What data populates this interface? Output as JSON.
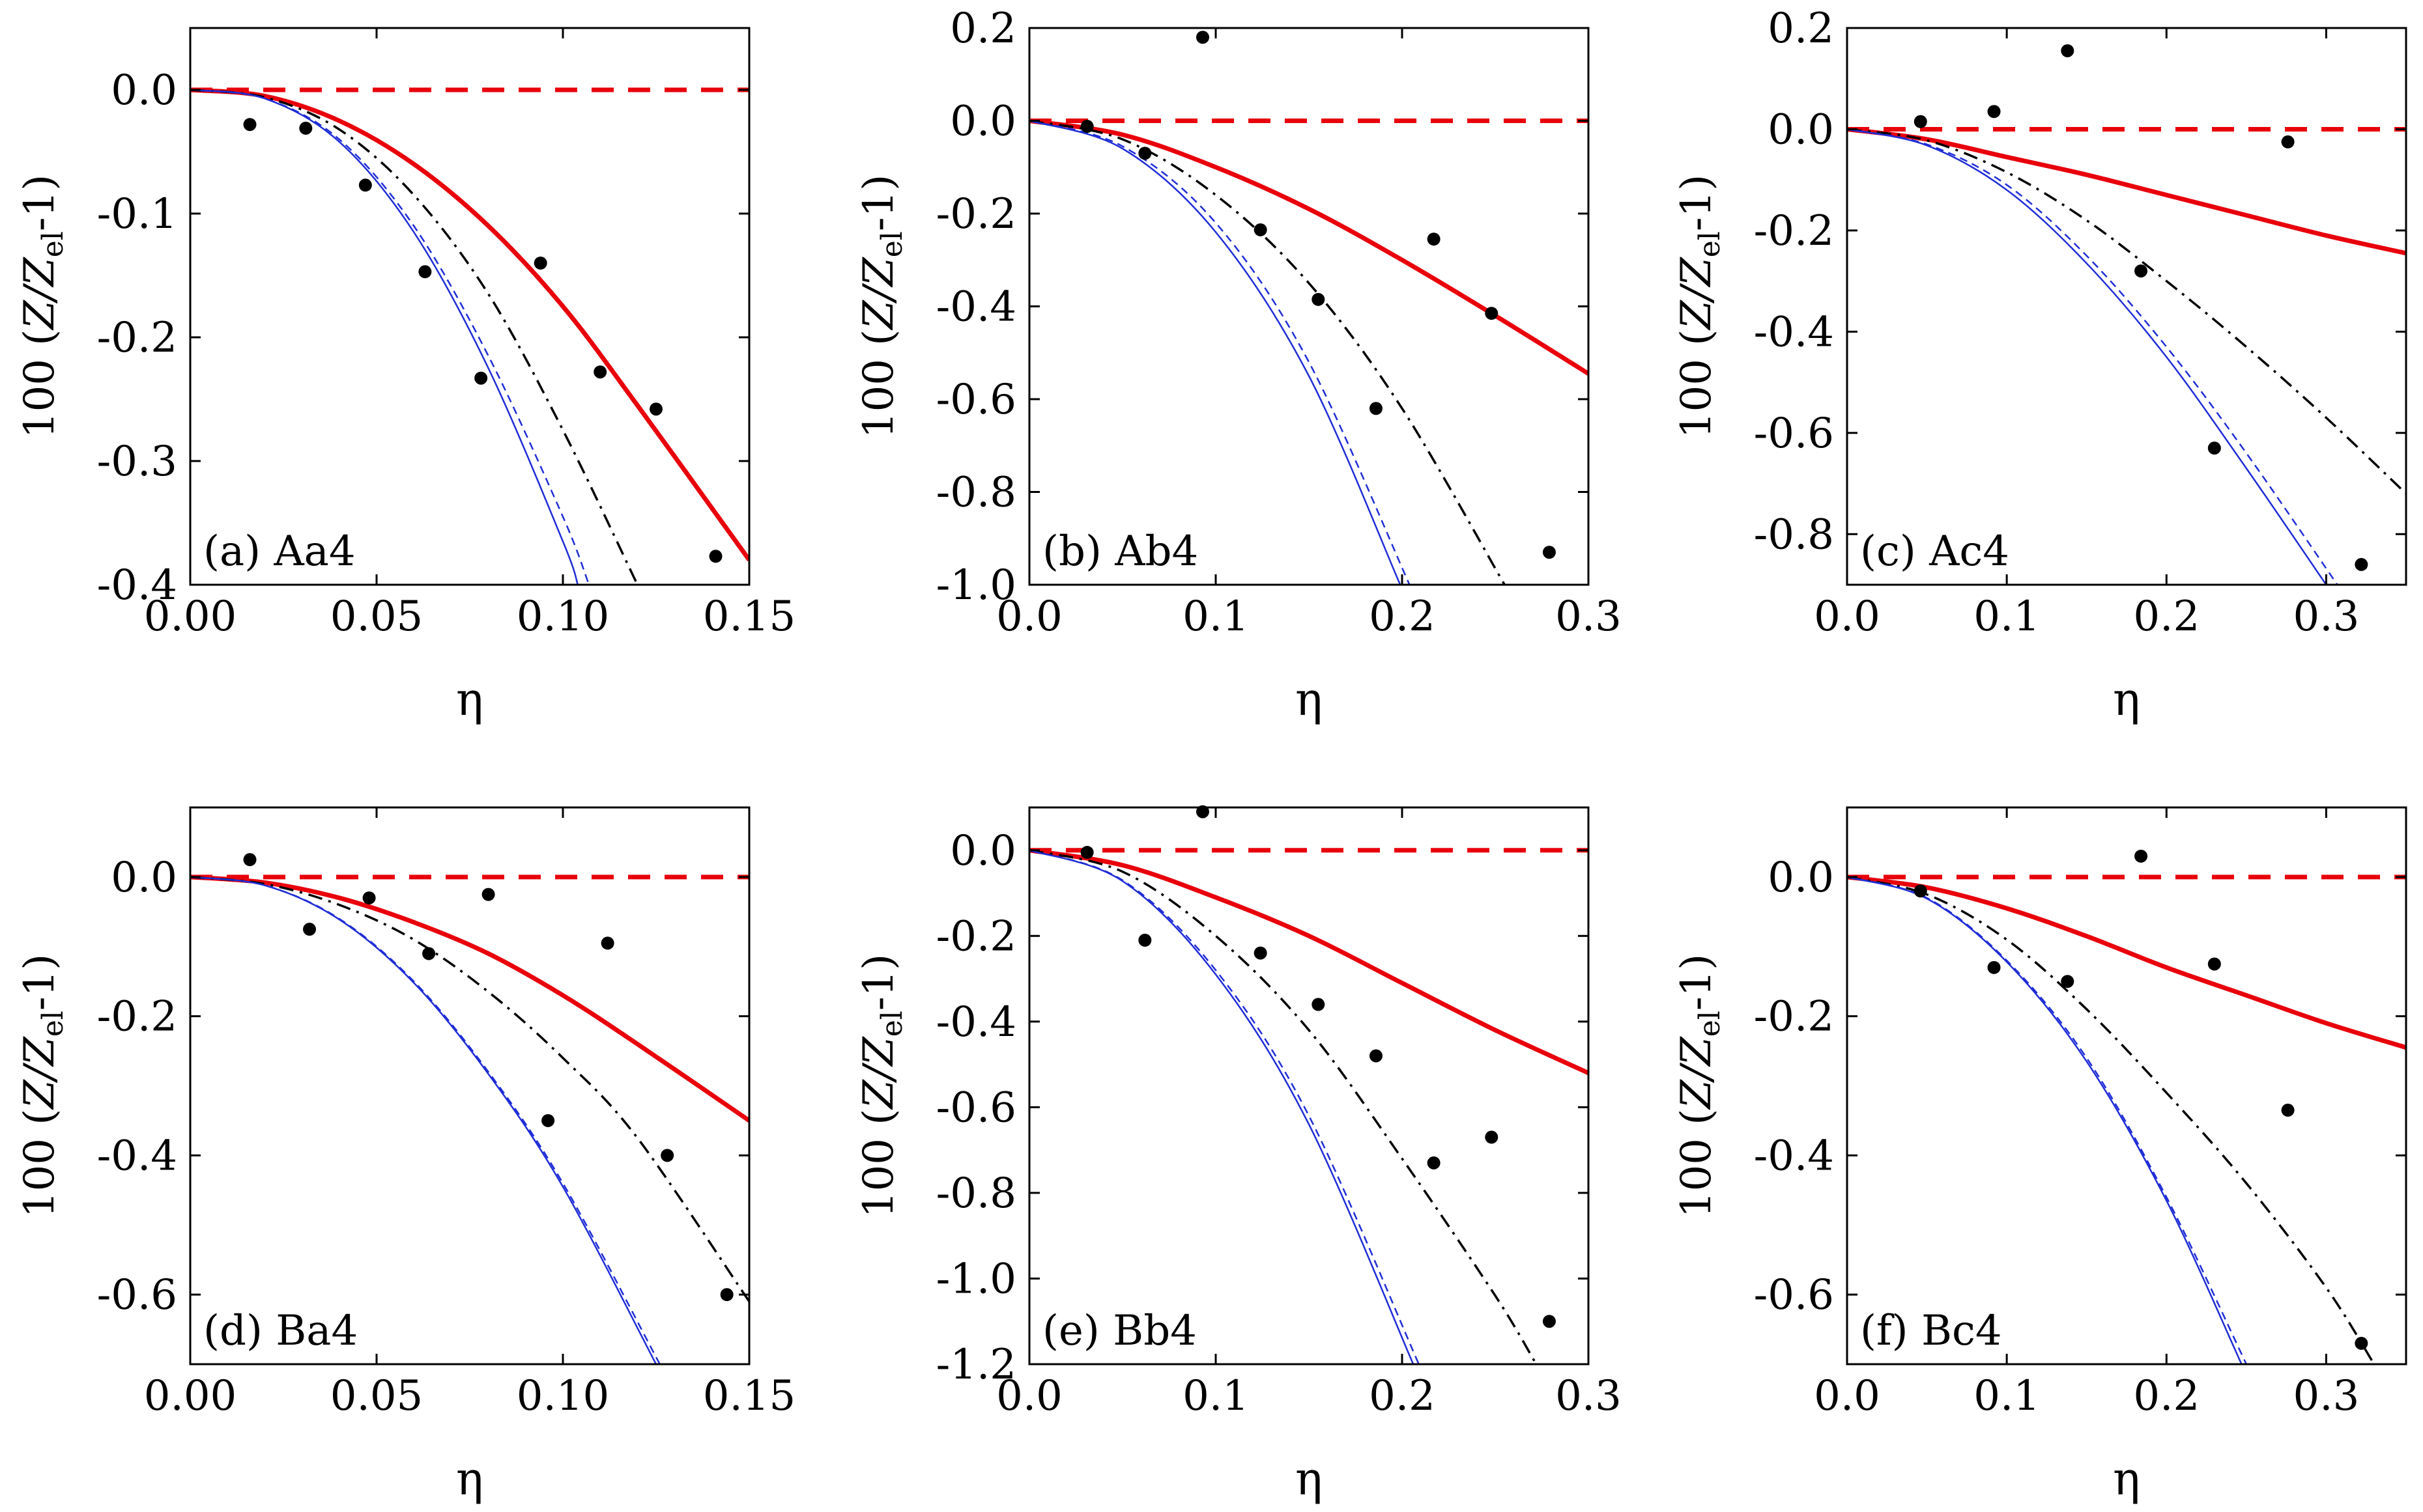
{
  "figure": {
    "panels_layout": "2 rows x 3 columns",
    "y_label_parts": {
      "prefix": "100 (",
      "z": "Z/Z",
      "sub": "el",
      "suffix": "-1)"
    },
    "x_label": "η"
  },
  "chart_data": [
    {
      "type": "line",
      "label": "(a) Aa4",
      "xlabel": "η",
      "ylabel": "100 (Z/Z_el-1)",
      "xlim": [
        0,
        0.15
      ],
      "ylim": [
        -0.4,
        0.05
      ],
      "xticks": [
        0.0,
        0.05,
        0.1,
        0.15
      ],
      "xtick_labels": [
        "0.00",
        "0.05",
        "0.10",
        "0.15"
      ],
      "yticks": [
        0.0,
        -0.1,
        -0.2,
        -0.3,
        -0.4
      ],
      "ytick_labels": [
        "0.0",
        "-0.1",
        "-0.2",
        "-0.3",
        "-0.4"
      ],
      "series": [
        {
          "name": "reference (zero)",
          "style": "red-dashed",
          "x": [
            0,
            0.15
          ],
          "y": [
            0,
            0
          ]
        },
        {
          "name": "red solid",
          "style": "red-solid",
          "x": [
            0,
            0.02,
            0.04,
            0.06,
            0.08,
            0.1,
            0.12,
            0.15
          ],
          "y": [
            0,
            -0.005,
            -0.025,
            -0.06,
            -0.11,
            -0.175,
            -0.255,
            -0.38
          ]
        },
        {
          "name": "black dash-dot",
          "style": "black-dashdot",
          "x": [
            0,
            0.02,
            0.04,
            0.06,
            0.08,
            0.1,
            0.12
          ],
          "y": [
            0,
            -0.006,
            -0.032,
            -0.085,
            -0.165,
            -0.275,
            -0.4
          ]
        },
        {
          "name": "blue dashed",
          "style": "blue-dashed",
          "x": [
            0,
            0.02,
            0.04,
            0.06,
            0.08,
            0.1,
            0.107
          ],
          "y": [
            0,
            -0.007,
            -0.04,
            -0.11,
            -0.215,
            -0.345,
            -0.4
          ]
        },
        {
          "name": "blue solid",
          "style": "blue-solid",
          "x": [
            0,
            0.02,
            0.04,
            0.06,
            0.08,
            0.1,
            0.104
          ],
          "y": [
            0,
            -0.007,
            -0.042,
            -0.115,
            -0.225,
            -0.365,
            -0.4
          ]
        },
        {
          "name": "data points",
          "style": "black-dots",
          "x": [
            0.016,
            0.031,
            0.047,
            0.063,
            0.078,
            0.094,
            0.11,
            0.125,
            0.141
          ],
          "y": [
            -0.028,
            -0.031,
            -0.077,
            -0.147,
            -0.233,
            -0.14,
            -0.228,
            -0.258,
            -0.377
          ]
        }
      ]
    },
    {
      "type": "line",
      "label": "(b) Ab4",
      "xlabel": "η",
      "ylabel": "100 (Z/Z_el-1)",
      "xlim": [
        0,
        0.3
      ],
      "ylim": [
        -1.0,
        0.2
      ],
      "xticks": [
        0.0,
        0.1,
        0.2,
        0.3
      ],
      "xtick_labels": [
        "0.0",
        "0.1",
        "0.2",
        "0.3"
      ],
      "yticks": [
        0.2,
        0.0,
        -0.2,
        -0.4,
        -0.6,
        -0.8,
        -1.0
      ],
      "ytick_labels": [
        "0.2",
        "0.0",
        "-0.2",
        "-0.4",
        "-0.6",
        "-0.8",
        "-1.0"
      ],
      "series": [
        {
          "name": "reference (zero)",
          "style": "red-dashed",
          "x": [
            0,
            0.3
          ],
          "y": [
            0,
            0
          ]
        },
        {
          "name": "red solid",
          "style": "red-solid",
          "x": [
            0,
            0.05,
            0.1,
            0.15,
            0.2,
            0.25,
            0.3
          ],
          "y": [
            0,
            -0.03,
            -0.1,
            -0.19,
            -0.3,
            -0.42,
            -0.545
          ]
        },
        {
          "name": "black dash-dot",
          "style": "black-dashdot",
          "x": [
            0,
            0.05,
            0.1,
            0.15,
            0.2,
            0.255
          ],
          "y": [
            0,
            -0.04,
            -0.16,
            -0.35,
            -0.62,
            -1.0
          ]
        },
        {
          "name": "blue dashed",
          "style": "blue-dashed",
          "x": [
            0,
            0.05,
            0.1,
            0.15,
            0.204
          ],
          "y": [
            0,
            -0.055,
            -0.22,
            -0.52,
            -1.0
          ]
        },
        {
          "name": "blue solid",
          "style": "blue-solid",
          "x": [
            0,
            0.05,
            0.1,
            0.15,
            0.199
          ],
          "y": [
            0,
            -0.06,
            -0.24,
            -0.55,
            -1.0
          ]
        },
        {
          "name": "data points",
          "style": "black-dots",
          "x": [
            0.031,
            0.062,
            0.093,
            0.124,
            0.155,
            0.186,
            0.217,
            0.248,
            0.279
          ],
          "y": [
            -0.012,
            -0.07,
            0.18,
            -0.235,
            -0.385,
            -0.62,
            -0.255,
            -0.415,
            -0.93
          ]
        }
      ]
    },
    {
      "type": "line",
      "label": "(c) Ac4",
      "xlabel": "η",
      "ylabel": "100 (Z/Z_el-1)",
      "xlim": [
        0,
        0.35
      ],
      "ylim": [
        -0.9,
        0.2
      ],
      "xticks": [
        0.0,
        0.1,
        0.2,
        0.3
      ],
      "xtick_labels": [
        "0.0",
        "0.1",
        "0.2",
        "0.3"
      ],
      "yticks": [
        0.2,
        0.0,
        -0.2,
        -0.4,
        -0.6,
        -0.8
      ],
      "ytick_labels": [
        "0.2",
        "0.0",
        "-0.2",
        "-0.4",
        "-0.6",
        "-0.8"
      ],
      "series": [
        {
          "name": "reference (zero)",
          "style": "red-dashed",
          "x": [
            0,
            0.35
          ],
          "y": [
            0,
            0
          ]
        },
        {
          "name": "red solid",
          "style": "red-solid",
          "x": [
            0,
            0.05,
            0.1,
            0.15,
            0.2,
            0.25,
            0.3,
            0.35
          ],
          "y": [
            0,
            -0.02,
            -0.055,
            -0.09,
            -0.13,
            -0.17,
            -0.21,
            -0.245
          ]
        },
        {
          "name": "black dash-dot",
          "style": "black-dashdot",
          "x": [
            0,
            0.05,
            0.1,
            0.15,
            0.2,
            0.25,
            0.3,
            0.35
          ],
          "y": [
            0,
            -0.022,
            -0.085,
            -0.18,
            -0.3,
            -0.43,
            -0.57,
            -0.72
          ]
        },
        {
          "name": "blue dashed",
          "style": "blue-dashed",
          "x": [
            0,
            0.05,
            0.1,
            0.15,
            0.2,
            0.25,
            0.307
          ],
          "y": [
            0,
            -0.03,
            -0.11,
            -0.25,
            -0.43,
            -0.64,
            -0.9
          ]
        },
        {
          "name": "blue solid",
          "style": "blue-solid",
          "x": [
            0,
            0.05,
            0.1,
            0.15,
            0.2,
            0.25,
            0.3
          ],
          "y": [
            0,
            -0.032,
            -0.12,
            -0.265,
            -0.45,
            -0.67,
            -0.9
          ]
        },
        {
          "name": "data points",
          "style": "black-dots",
          "x": [
            0.046,
            0.092,
            0.138,
            0.184,
            0.23,
            0.276,
            0.322
          ],
          "y": [
            0.015,
            0.035,
            0.155,
            -0.28,
            -0.63,
            -0.025,
            -0.86
          ]
        }
      ]
    },
    {
      "type": "line",
      "label": "(d) Ba4",
      "xlabel": "η",
      "ylabel": "100 (Z/Z_el-1)",
      "xlim": [
        0,
        0.15
      ],
      "ylim": [
        -0.7,
        0.1
      ],
      "xticks": [
        0.0,
        0.05,
        0.1,
        0.15
      ],
      "xtick_labels": [
        "0.00",
        "0.05",
        "0.10",
        "0.15"
      ],
      "yticks": [
        0.0,
        -0.2,
        -0.4,
        -0.6
      ],
      "ytick_labels": [
        "0.0",
        "-0.2",
        "-0.4",
        "-0.6"
      ],
      "series": [
        {
          "name": "reference (zero)",
          "style": "red-dashed",
          "x": [
            0,
            0.15
          ],
          "y": [
            0,
            0
          ]
        },
        {
          "name": "red solid",
          "style": "red-solid",
          "x": [
            0,
            0.02,
            0.04,
            0.06,
            0.08,
            0.1,
            0.12,
            0.15
          ],
          "y": [
            0,
            -0.008,
            -0.03,
            -0.065,
            -0.11,
            -0.17,
            -0.24,
            -0.35
          ]
        },
        {
          "name": "black dash-dot",
          "style": "black-dashdot",
          "x": [
            0,
            0.02,
            0.04,
            0.06,
            0.08,
            0.1,
            0.12,
            0.15
          ],
          "y": [
            0,
            -0.01,
            -0.04,
            -0.09,
            -0.165,
            -0.26,
            -0.375,
            -0.61
          ]
        },
        {
          "name": "blue dashed",
          "style": "blue-dashed",
          "x": [
            0,
            0.02,
            0.04,
            0.06,
            0.08,
            0.1,
            0.126
          ],
          "y": [
            0,
            -0.012,
            -0.06,
            -0.15,
            -0.28,
            -0.44,
            -0.7
          ]
        },
        {
          "name": "blue solid",
          "style": "blue-solid",
          "x": [
            0,
            0.02,
            0.04,
            0.06,
            0.08,
            0.1,
            0.125
          ],
          "y": [
            0,
            -0.012,
            -0.061,
            -0.152,
            -0.283,
            -0.445,
            -0.7
          ]
        },
        {
          "name": "data points",
          "style": "black-dots",
          "x": [
            0.016,
            0.032,
            0.048,
            0.064,
            0.08,
            0.096,
            0.112,
            0.128,
            0.144
          ],
          "y": [
            0.025,
            -0.075,
            -0.03,
            -0.11,
            -0.025,
            -0.35,
            -0.095,
            -0.4,
            -0.6
          ]
        }
      ]
    },
    {
      "type": "line",
      "label": "(e) Bb4",
      "xlabel": "η",
      "ylabel": "100 (Z/Z_el-1)",
      "xlim": [
        0,
        0.3
      ],
      "ylim": [
        -1.2,
        0.1
      ],
      "xticks": [
        0.0,
        0.1,
        0.2,
        0.3
      ],
      "xtick_labels": [
        "0.0",
        "0.1",
        "0.2",
        "0.3"
      ],
      "yticks": [
        0.0,
        -0.2,
        -0.4,
        -0.6,
        -0.8,
        -1.0,
        -1.2
      ],
      "ytick_labels": [
        "0.0",
        "-0.2",
        "-0.4",
        "-0.6",
        "-0.8",
        "-1.0",
        "-1.2"
      ],
      "series": [
        {
          "name": "reference (zero)",
          "style": "red-dashed",
          "x": [
            0,
            0.3
          ],
          "y": [
            0,
            0
          ]
        },
        {
          "name": "red solid",
          "style": "red-solid",
          "x": [
            0,
            0.05,
            0.1,
            0.15,
            0.2,
            0.25,
            0.3
          ],
          "y": [
            0,
            -0.035,
            -0.11,
            -0.2,
            -0.31,
            -0.42,
            -0.52
          ]
        },
        {
          "name": "black dash-dot",
          "style": "black-dashdot",
          "x": [
            0,
            0.05,
            0.1,
            0.15,
            0.2,
            0.25,
            0.272
          ],
          "y": [
            0,
            -0.05,
            -0.2,
            -0.42,
            -0.72,
            -1.04,
            -1.2
          ]
        },
        {
          "name": "blue dashed",
          "style": "blue-dashed",
          "x": [
            0,
            0.05,
            0.1,
            0.15,
            0.209
          ],
          "y": [
            0,
            -0.07,
            -0.28,
            -0.62,
            -1.2
          ]
        },
        {
          "name": "blue solid",
          "style": "blue-solid",
          "x": [
            0,
            0.05,
            0.1,
            0.15,
            0.206
          ],
          "y": [
            0,
            -0.072,
            -0.29,
            -0.64,
            -1.2
          ]
        },
        {
          "name": "data points",
          "style": "black-dots",
          "x": [
            0.031,
            0.062,
            0.093,
            0.124,
            0.155,
            0.186,
            0.217,
            0.248,
            0.279
          ],
          "y": [
            -0.005,
            -0.21,
            0.09,
            -0.24,
            -0.36,
            -0.48,
            -0.73,
            -0.67,
            -1.1
          ]
        }
      ]
    },
    {
      "type": "line",
      "label": "(f) Bc4",
      "xlabel": "η",
      "ylabel": "100 (Z/Z_el-1)",
      "xlim": [
        0,
        0.35
      ],
      "ylim": [
        -0.7,
        0.1
      ],
      "xticks": [
        0.0,
        0.1,
        0.2,
        0.3
      ],
      "xtick_labels": [
        "0.0",
        "0.1",
        "0.2",
        "0.3"
      ],
      "yticks": [
        0.0,
        -0.2,
        -0.4,
        -0.6
      ],
      "ytick_labels": [
        "0.0",
        "-0.2",
        "-0.4",
        "-0.6"
      ],
      "series": [
        {
          "name": "reference (zero)",
          "style": "red-dashed",
          "x": [
            0,
            0.35
          ],
          "y": [
            0,
            0
          ]
        },
        {
          "name": "red solid",
          "style": "red-solid",
          "x": [
            0,
            0.05,
            0.1,
            0.15,
            0.2,
            0.25,
            0.3,
            0.35
          ],
          "y": [
            0,
            -0.015,
            -0.045,
            -0.085,
            -0.13,
            -0.17,
            -0.21,
            -0.245
          ]
        },
        {
          "name": "black dash-dot",
          "style": "black-dashdot",
          "x": [
            0,
            0.05,
            0.1,
            0.15,
            0.2,
            0.25,
            0.3,
            0.33
          ],
          "y": [
            0,
            -0.025,
            -0.09,
            -0.19,
            -0.31,
            -0.44,
            -0.59,
            -0.7
          ]
        },
        {
          "name": "blue dashed",
          "style": "blue-dashed",
          "x": [
            0,
            0.05,
            0.1,
            0.15,
            0.2,
            0.25
          ],
          "y": [
            0,
            -0.03,
            -0.12,
            -0.26,
            -0.46,
            -0.7
          ]
        },
        {
          "name": "blue solid",
          "style": "blue-solid",
          "x": [
            0,
            0.05,
            0.1,
            0.15,
            0.2,
            0.247
          ],
          "y": [
            0,
            -0.031,
            -0.122,
            -0.265,
            -0.465,
            -0.7
          ]
        },
        {
          "name": "data points",
          "style": "black-dots",
          "x": [
            0.046,
            0.092,
            0.138,
            0.184,
            0.23,
            0.276,
            0.322
          ],
          "y": [
            -0.02,
            -0.13,
            -0.15,
            0.03,
            -0.125,
            -0.335,
            -0.67
          ]
        }
      ]
    }
  ]
}
